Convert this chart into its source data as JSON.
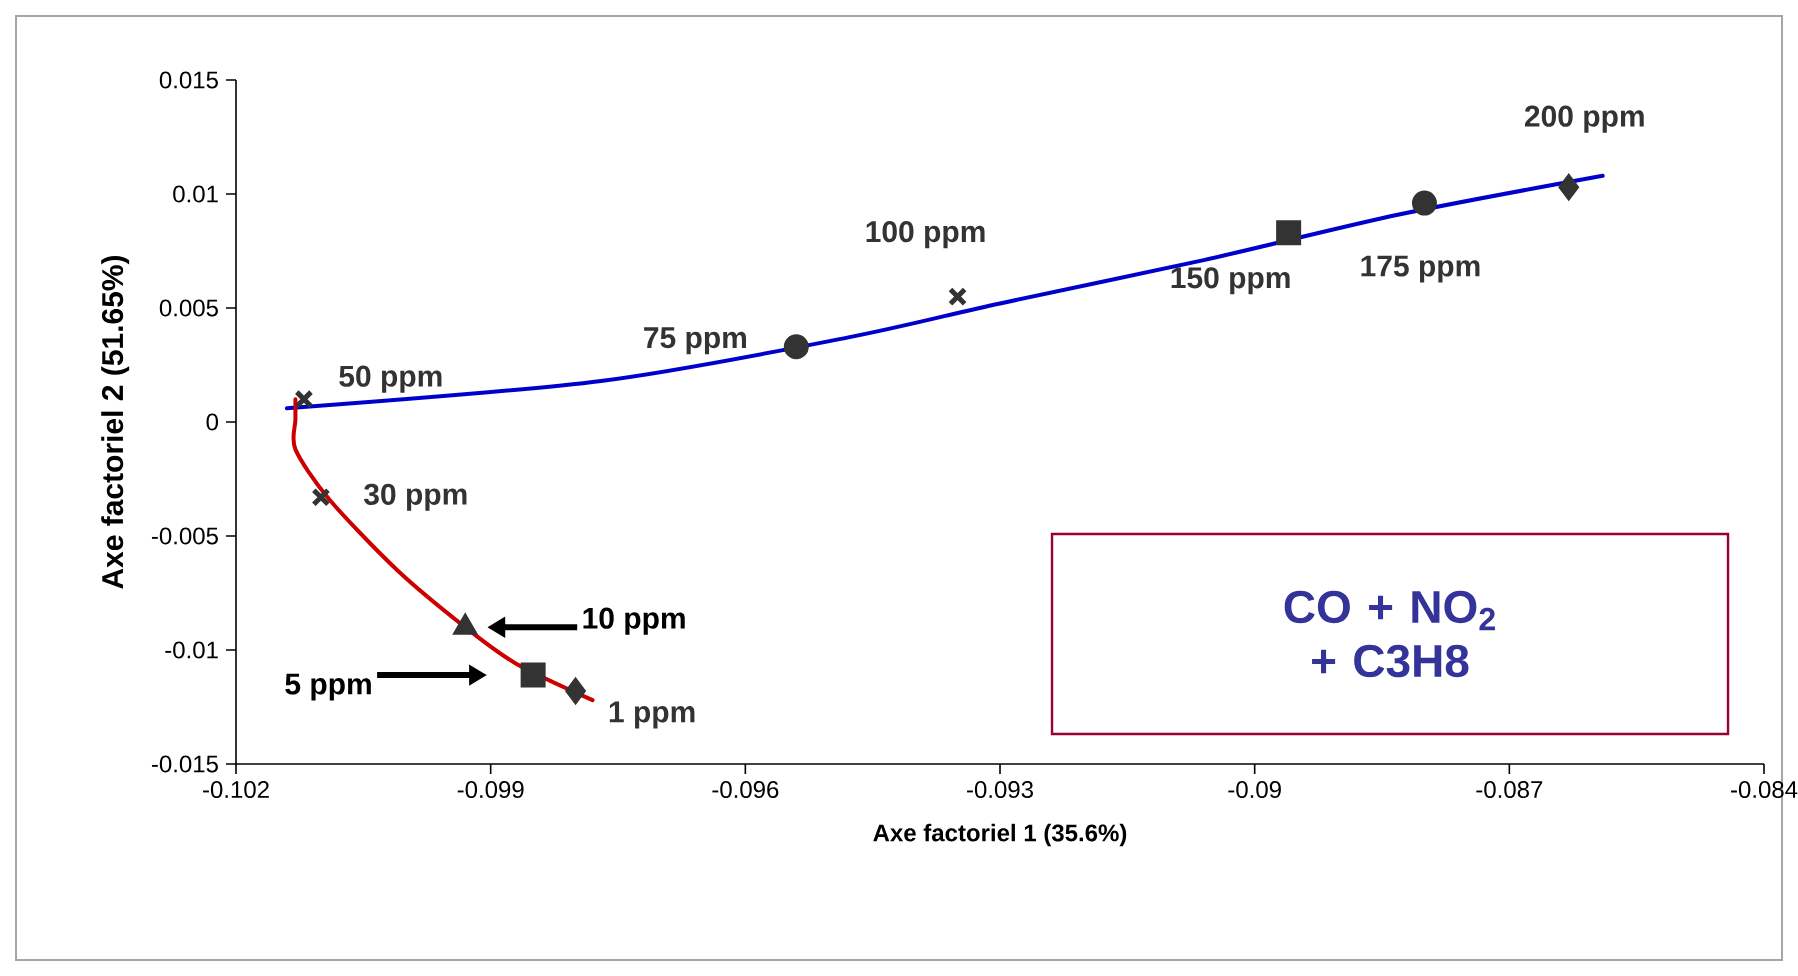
{
  "chart_data": {
    "type": "scatter",
    "xlabel": "Axe factoriel 1 (35.6%)",
    "ylabel": "Axe factoriel 2 (51.65%)",
    "xlim": [
      -0.102,
      -0.084
    ],
    "ylim": [
      -0.015,
      0.015
    ],
    "xticks": [
      -0.102,
      -0.099,
      -0.096,
      -0.093,
      -0.09,
      -0.087,
      -0.084
    ],
    "yticks": [
      -0.015,
      -0.01,
      -0.005,
      0,
      0.005,
      0.01,
      0.015
    ],
    "grid": false,
    "legend": false,
    "annotations": [
      "CO + NO$_{2}$ + C3H8",
      "5 ppm",
      "10 ppm"
    ],
    "series": [
      {
        "name": "1 ppm",
        "color": "#333333",
        "marker": "diamond",
        "x": [
          -0.098
        ],
        "values": [
          -0.0118
        ]
      },
      {
        "color": "#333333",
        "marker": "square",
        "x": [
          -0.0985
        ],
        "values": [
          -0.0111
        ]
      },
      {
        "color": "#333333",
        "marker": "triangle",
        "x": [
          -0.0993
        ],
        "values": [
          -0.009
        ]
      },
      {
        "name": "30 ppm",
        "color": "#333333",
        "marker": "cross",
        "x": [
          -0.101
        ],
        "values": [
          -0.0033
        ]
      },
      {
        "name": "50 ppm",
        "color": "#333333",
        "marker": "cross",
        "x": [
          -0.1012
        ],
        "values": [
          0.001
        ]
      },
      {
        "name": "75 ppm",
        "color": "#333333",
        "marker": "circle",
        "x": [
          -0.0954
        ],
        "values": [
          0.0033
        ]
      },
      {
        "name": "100 ppm",
        "color": "#333333",
        "marker": "cross",
        "x": [
          -0.0935
        ],
        "values": [
          0.0055
        ]
      },
      {
        "name": "150 ppm",
        "color": "#333333",
        "marker": "square",
        "x": [
          -0.0896
        ],
        "values": [
          0.0083
        ]
      },
      {
        "name": "175 ppm",
        "color": "#333333",
        "marker": "circle",
        "x": [
          -0.088
        ],
        "values": [
          0.0096
        ]
      },
      {
        "name": "200 ppm",
        "color": "#333333",
        "marker": "diamond",
        "x": [
          -0.0863
        ],
        "values": [
          0.0103
        ]
      },
      {
        "type": "line",
        "color": "#0000cc",
        "marker": "none",
        "line_style": "solid",
        "x": [
          -0.1014,
          -0.0977,
          -0.0948,
          -0.093,
          -0.0906,
          -0.0883,
          -0.0859
        ],
        "values": [
          0.0006,
          0.0018,
          0.0037,
          0.0052,
          0.0071,
          0.0091,
          0.0108
        ]
      },
      {
        "type": "line",
        "color": "#cc0000",
        "marker": "none",
        "line_style": "solid",
        "x": [
          -0.1013,
          -0.1013,
          -0.1013,
          -0.1009,
          -0.1001,
          -0.0993,
          -0.0987,
          -0.0978
        ],
        "values": [
          0.001,
          0.0001,
          -0.0012,
          -0.0034,
          -0.0065,
          -0.009,
          -0.0106,
          -0.0122
        ]
      }
    ]
  }
}
